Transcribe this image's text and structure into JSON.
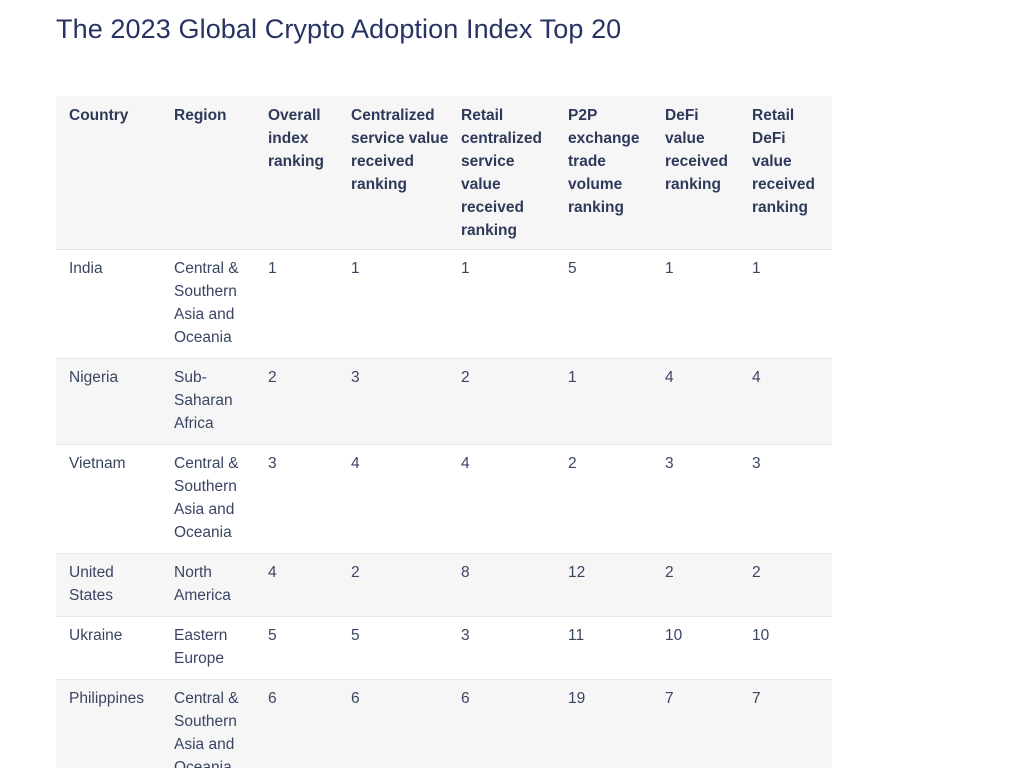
{
  "title": "The 2023 Global Crypto Adoption Index Top 20",
  "table": {
    "headers": [
      "Country",
      "Region",
      "Overall index ranking",
      "Centralized service value received ranking",
      "Retail centralized service value received ranking",
      "P2P exchange trade volume ranking",
      "DeFi value received ranking",
      "Retail DeFi value received ranking"
    ],
    "rows": [
      [
        "India",
        "Central & Southern Asia and Oceania",
        "1",
        "1",
        "1",
        "5",
        "1",
        "1"
      ],
      [
        "Nigeria",
        "Sub-Saharan Africa",
        "2",
        "3",
        "2",
        "1",
        "4",
        "4"
      ],
      [
        "Vietnam",
        "Central & Southern Asia and Oceania",
        "3",
        "4",
        "4",
        "2",
        "3",
        "3"
      ],
      [
        "United States",
        "North America",
        "4",
        "2",
        "8",
        "12",
        "2",
        "2"
      ],
      [
        "Ukraine",
        "Eastern Europe",
        "5",
        "5",
        "3",
        "11",
        "10",
        "10"
      ],
      [
        "Philippines",
        "Central & Southern Asia and Oceania",
        "6",
        "6",
        "6",
        "19",
        "7",
        "7"
      ]
    ]
  }
}
